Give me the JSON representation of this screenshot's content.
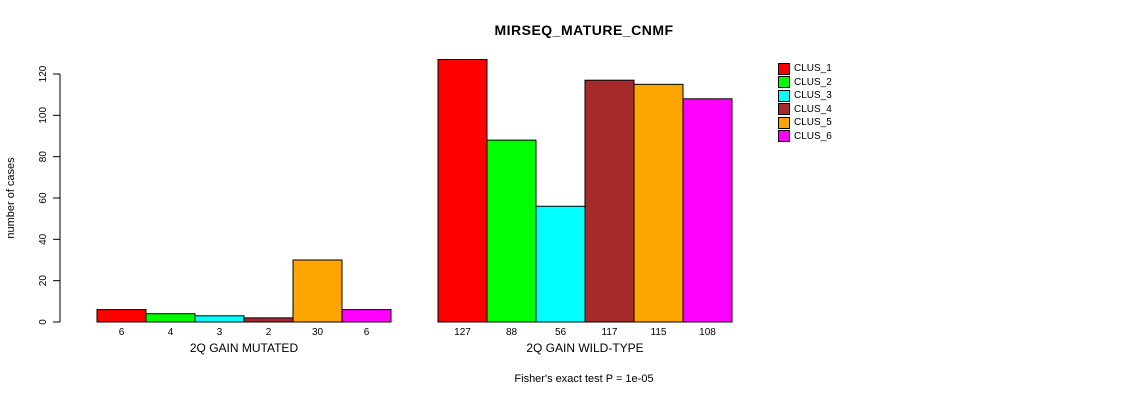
{
  "figure": {
    "title": "MIRSEQ_MATURE_CNMF",
    "caption": "Fisher's exact test P = 1e-05"
  },
  "chart_data": {
    "type": "bar",
    "title": "MIRSEQ_MATURE_CNMF",
    "xlabel": "",
    "ylabel": "number of cases",
    "ylim": [
      0,
      130
    ],
    "yticks": [
      0,
      20,
      40,
      60,
      80,
      100,
      120
    ],
    "grid": false,
    "legend_position": "right",
    "categories": [
      "CLUS_1",
      "CLUS_2",
      "CLUS_3",
      "CLUS_4",
      "CLUS_5",
      "CLUS_6"
    ],
    "series_colors": [
      "#FF0000",
      "#00FF00",
      "#00FFFF",
      "#A52A2A",
      "#FFA500",
      "#FF00FF"
    ],
    "groups": [
      {
        "label": "2Q GAIN MUTATED",
        "values": [
          6,
          4,
          3,
          2,
          30,
          6
        ]
      },
      {
        "label": "2Q GAIN WILD-TYPE",
        "values": [
          127,
          88,
          56,
          117,
          115,
          108
        ]
      }
    ],
    "bar_value_labels": [
      [
        "6",
        "4",
        "3",
        "2",
        "30",
        "6"
      ],
      [
        "127",
        "88",
        "56",
        "117",
        "115",
        "108"
      ]
    ],
    "annotation": "Fisher's exact test P = 1e-05",
    "legend": [
      {
        "label": "CLUS_1",
        "color": "#FF0000"
      },
      {
        "label": "CLUS_2",
        "color": "#00FF00"
      },
      {
        "label": "CLUS_3",
        "color": "#00FFFF"
      },
      {
        "label": "CLUS_4",
        "color": "#A52A2A"
      },
      {
        "label": "CLUS_5",
        "color": "#FFA500"
      },
      {
        "label": "CLUS_6",
        "color": "#FF00FF"
      }
    ]
  }
}
